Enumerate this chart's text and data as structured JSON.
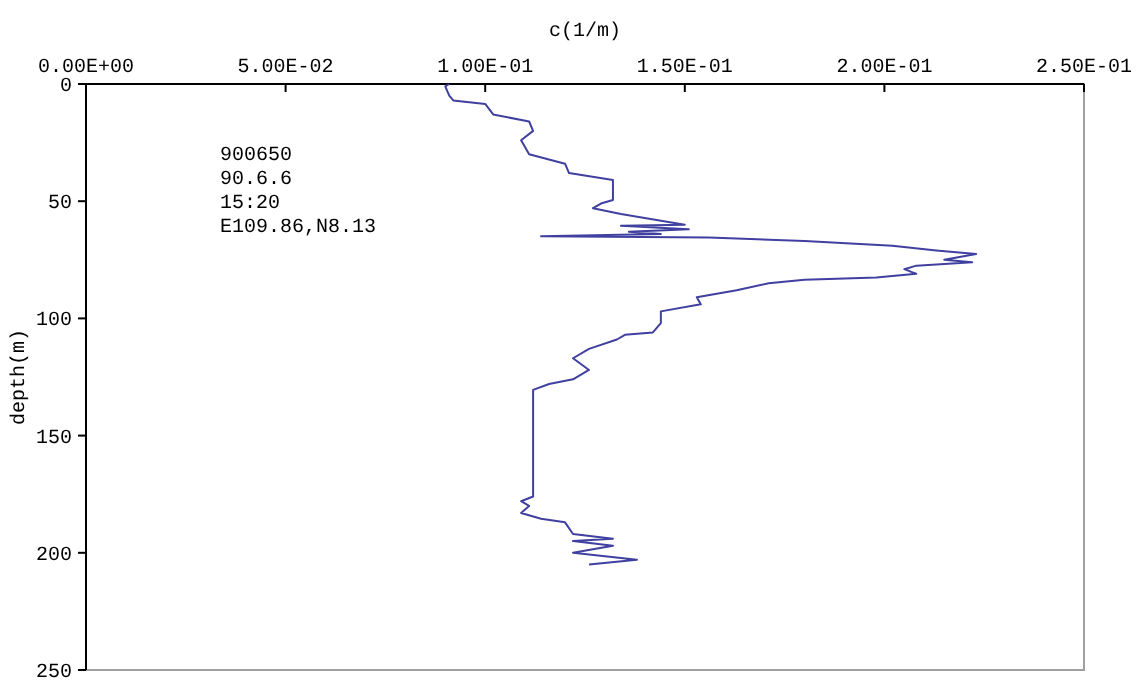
{
  "chart_data": {
    "type": "line",
    "xlabel": "c(1/m)",
    "ylabel": "depth(m)",
    "annotations": [
      "900650",
      "90.6.6",
      "15:20",
      "E109.86,N8.13"
    ],
    "xlim": [
      0,
      0.25
    ],
    "xticks": [
      {
        "value": 0,
        "label": "0.00E+00"
      },
      {
        "value": 0.05,
        "label": "5.00E-02"
      },
      {
        "value": 0.1,
        "label": "1.00E-01"
      },
      {
        "value": 0.15,
        "label": "1.50E-01"
      },
      {
        "value": 0.2,
        "label": "2.00E-01"
      },
      {
        "value": 0.25,
        "label": "2.50E-01"
      }
    ],
    "ylim": [
      250,
      0
    ],
    "yticks": [
      0,
      50,
      100,
      150,
      200,
      250
    ],
    "grid": false,
    "marker": "none",
    "line_style": "solid",
    "series": [
      {
        "color": "#4040a0",
        "x": [
          0.091,
          0.09,
          0.091,
          0.092,
          0.1,
          0.102,
          0.111,
          0.112,
          0.109,
          0.111,
          0.12,
          0.121,
          0.132,
          0.132,
          0.129,
          0.127,
          0.134,
          0.15,
          0.134,
          0.151,
          0.136,
          0.144,
          0.114,
          0.156,
          0.18,
          0.202,
          0.213,
          0.223,
          0.215,
          0.222,
          0.208,
          0.205,
          0.208,
          0.198,
          0.18,
          0.171,
          0.163,
          0.153,
          0.154,
          0.144,
          0.144,
          0.142,
          0.135,
          0.133,
          0.126,
          0.122,
          0.126,
          0.122,
          0.116,
          0.112,
          0.112,
          0.112,
          0.109,
          0.111,
          0.109,
          0.114,
          0.12,
          0.122,
          0.132,
          0.122,
          0.132,
          0.122,
          0.138,
          0.126
        ],
        "values": [
          0,
          1,
          5,
          7,
          8.5,
          13,
          16,
          20,
          24,
          30,
          34,
          38,
          41,
          49.5,
          51,
          53,
          55.5,
          60,
          60.5,
          62,
          63,
          64,
          65,
          65.5,
          67,
          69,
          71,
          72.5,
          75,
          76,
          77.5,
          79,
          81,
          82.5,
          83.5,
          85,
          88,
          91,
          94,
          97,
          102,
          106,
          107,
          109,
          113,
          117,
          122,
          126,
          128,
          130.5,
          135,
          176,
          178,
          180,
          183,
          185.5,
          187,
          192,
          194,
          195,
          197,
          200,
          203,
          205
        ]
      }
    ]
  }
}
